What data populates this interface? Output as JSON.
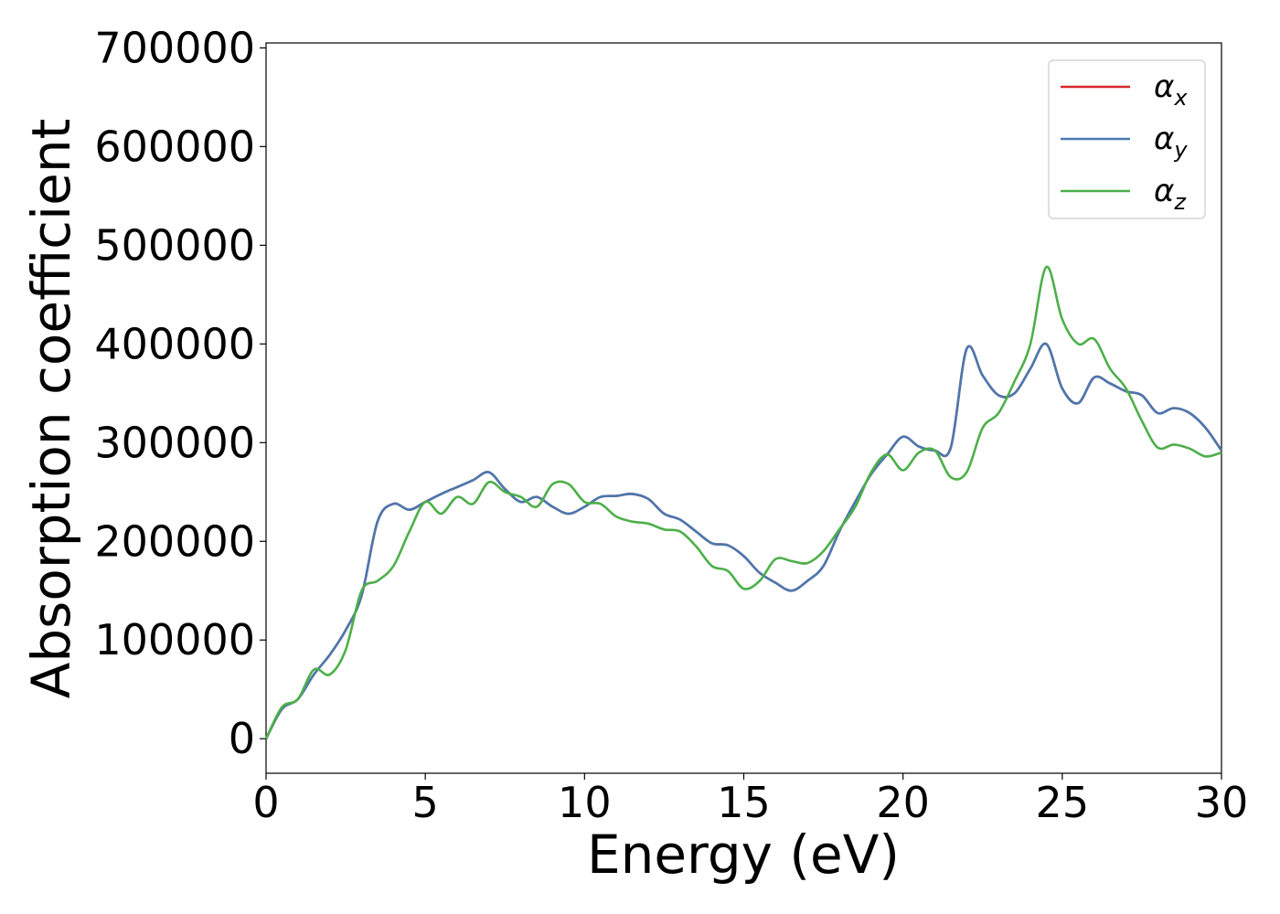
{
  "chart_data": {
    "type": "line",
    "xlabel": "Energy (eV)",
    "ylabel": "Absorption coefficient",
    "xlim": [
      0,
      30
    ],
    "ylim": [
      -35000,
      705000
    ],
    "xticks": [
      "0",
      "5",
      "10",
      "15",
      "20",
      "25",
      "30"
    ],
    "yticks": [
      "0",
      "100000",
      "200000",
      "300000",
      "400000",
      "500000",
      "600000",
      "700000"
    ],
    "grid": false,
    "legend_position": "top-right",
    "series": [
      {
        "name": "α_x",
        "legend_main": "α",
        "legend_sub": "x",
        "color": "#d62728",
        "x": [
          0,
          0.5,
          1,
          1.5,
          2,
          2.5,
          3,
          3.5,
          4,
          4.5,
          5,
          5.5,
          6,
          6.5,
          7,
          7.5,
          8,
          8.5,
          9,
          9.5,
          10,
          10.5,
          11,
          11.5,
          12,
          12.5,
          13,
          13.5,
          14,
          14.5,
          15,
          15.5,
          16,
          16.5,
          17,
          17.5,
          18,
          18.5,
          19,
          19.5,
          20,
          20.5,
          21,
          21.5,
          22,
          22.5,
          23,
          23.5,
          24,
          24.5,
          25,
          25.5,
          26,
          26.5,
          27,
          27.5,
          28,
          28.5,
          29,
          29.5,
          30
        ],
        "y": [
          0,
          30000,
          40000,
          65000,
          85000,
          110000,
          145000,
          220000,
          238000,
          232000,
          240000,
          248000,
          255000,
          262000,
          270000,
          253000,
          240000,
          245000,
          235000,
          228000,
          235000,
          245000,
          246000,
          248000,
          243000,
          228000,
          222000,
          210000,
          198000,
          196000,
          185000,
          168000,
          158000,
          150000,
          160000,
          175000,
          210000,
          240000,
          268000,
          288000,
          306000,
          296000,
          292000,
          295000,
          395000,
          368000,
          348000,
          350000,
          375000,
          400000,
          355000,
          340000,
          366000,
          360000,
          352000,
          348000,
          330000,
          335000,
          330000,
          315000,
          292000
        ]
      },
      {
        "name": "α_y",
        "legend_main": "α",
        "legend_sub": "y",
        "color": "#4a78b0",
        "x": [
          0,
          0.5,
          1,
          1.5,
          2,
          2.5,
          3,
          3.5,
          4,
          4.5,
          5,
          5.5,
          6,
          6.5,
          7,
          7.5,
          8,
          8.5,
          9,
          9.5,
          10,
          10.5,
          11,
          11.5,
          12,
          12.5,
          13,
          13.5,
          14,
          14.5,
          15,
          15.5,
          16,
          16.5,
          17,
          17.5,
          18,
          18.5,
          19,
          19.5,
          20,
          20.5,
          21,
          21.5,
          22,
          22.5,
          23,
          23.5,
          24,
          24.5,
          25,
          25.5,
          26,
          26.5,
          27,
          27.5,
          28,
          28.5,
          29,
          29.5,
          30
        ],
        "y": [
          0,
          30000,
          40000,
          65000,
          85000,
          110000,
          145000,
          220000,
          238000,
          232000,
          240000,
          248000,
          255000,
          262000,
          270000,
          253000,
          240000,
          245000,
          235000,
          228000,
          235000,
          245000,
          246000,
          248000,
          243000,
          228000,
          222000,
          210000,
          198000,
          196000,
          185000,
          168000,
          158000,
          150000,
          160000,
          175000,
          210000,
          240000,
          268000,
          288000,
          306000,
          296000,
          292000,
          295000,
          395000,
          368000,
          348000,
          350000,
          375000,
          400000,
          355000,
          340000,
          366000,
          360000,
          352000,
          348000,
          330000,
          335000,
          330000,
          315000,
          292000
        ]
      },
      {
        "name": "α_z",
        "legend_main": "α",
        "legend_sub": "z",
        "color": "#4daf4a",
        "x": [
          0,
          0.5,
          1,
          1.5,
          2,
          2.5,
          3,
          3.5,
          4,
          4.5,
          5,
          5.5,
          6,
          6.5,
          7,
          7.5,
          8,
          8.5,
          9,
          9.5,
          10,
          10.5,
          11,
          11.5,
          12,
          12.5,
          13,
          13.5,
          14,
          14.5,
          15,
          15.5,
          16,
          16.5,
          17,
          17.5,
          18,
          18.5,
          19,
          19.5,
          20,
          20.5,
          21,
          21.5,
          22,
          22.5,
          23,
          23.5,
          24,
          24.5,
          25,
          25.5,
          26,
          26.5,
          27,
          27.5,
          28,
          28.5,
          29,
          29.5,
          30
        ],
        "y": [
          0,
          32000,
          40000,
          70000,
          65000,
          90000,
          150000,
          160000,
          175000,
          210000,
          240000,
          228000,
          245000,
          238000,
          260000,
          250000,
          245000,
          235000,
          258000,
          258000,
          240000,
          238000,
          225000,
          220000,
          218000,
          212000,
          210000,
          195000,
          175000,
          170000,
          152000,
          160000,
          182000,
          180000,
          178000,
          190000,
          212000,
          235000,
          270000,
          288000,
          272000,
          290000,
          292000,
          265000,
          270000,
          315000,
          330000,
          362000,
          400000,
          478000,
          425000,
          400000,
          405000,
          375000,
          355000,
          322000,
          295000,
          298000,
          294000,
          286000,
          290000
        ]
      }
    ]
  }
}
